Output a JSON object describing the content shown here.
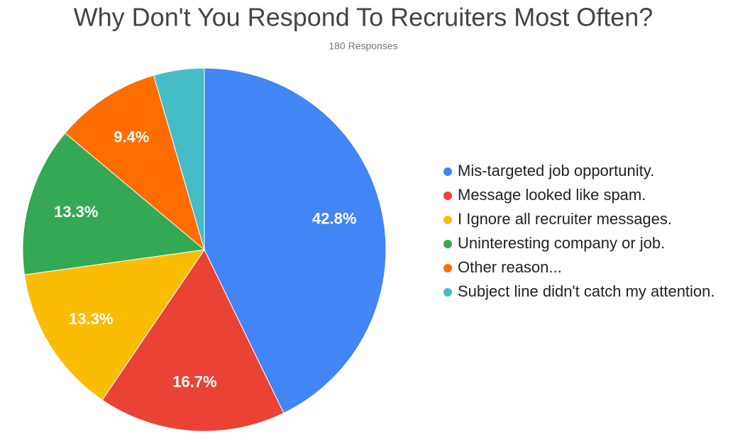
{
  "chart_data": {
    "type": "pie",
    "title": "Why Don't You Respond To Recruiters Most Often?",
    "subtitle": "180 Responses",
    "categories": [
      "Mis-targeted job opportunity.",
      "Message looked like spam.",
      "I Ignore all recruiter messages.",
      "Uninteresting company or job.",
      "Other reason...",
      "Subject line didn't catch my attention."
    ],
    "values": [
      42.8,
      16.7,
      13.3,
      13.3,
      9.4,
      4.5
    ],
    "value_labels": [
      "42.8%",
      "16.7%",
      "13.3%",
      "13.3%",
      "9.4%",
      null
    ],
    "colors": [
      "#4285f4",
      "#ea4335",
      "#fbbc04",
      "#34a853",
      "#ff6d01",
      "#46bdc6"
    ],
    "legend": "right"
  }
}
